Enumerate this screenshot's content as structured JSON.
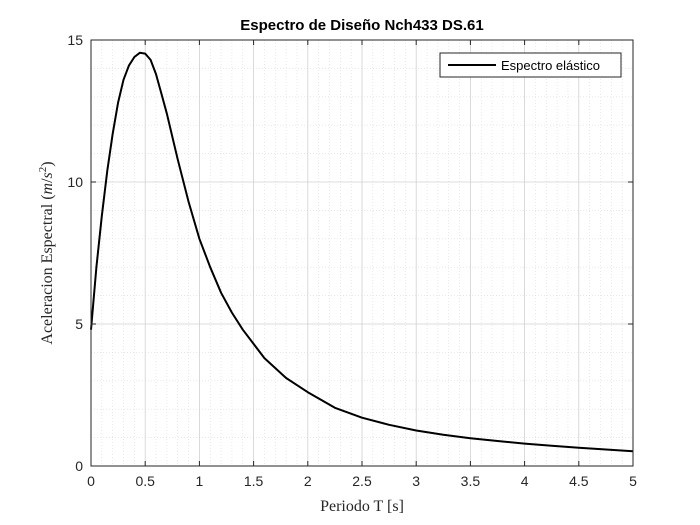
{
  "chart_data": {
    "type": "line",
    "title": "Espectro de Diseño Nch433 DS.61",
    "xlabel": "Periodo T [s]",
    "ylabel_main": "Aceleracion Espectral (",
    "ylabel_unit_m": "m",
    "ylabel_unit_slash": "/",
    "ylabel_unit_s": "s",
    "ylabel_unit_exp": "2",
    "ylabel_close": ")",
    "xlim": [
      0,
      5
    ],
    "ylim": [
      0,
      15
    ],
    "xticks": [
      0,
      0.5,
      1,
      1.5,
      2,
      2.5,
      3,
      3.5,
      4,
      4.5,
      5
    ],
    "xtick_labels": [
      "0",
      "0.5",
      "1",
      "1.5",
      "2",
      "2.5",
      "3",
      "3.5",
      "4",
      "4.5",
      "5"
    ],
    "yticks": [
      0,
      5,
      10,
      15
    ],
    "ytick_labels": [
      "0",
      "5",
      "10",
      "15"
    ],
    "grid": true,
    "minor_grid": true,
    "legend_position": "top-right",
    "series": [
      {
        "name": "Espectro elástico",
        "color": "#000000",
        "x": [
          0,
          0.05,
          0.1,
          0.15,
          0.2,
          0.25,
          0.3,
          0.35,
          0.4,
          0.45,
          0.5,
          0.55,
          0.6,
          0.65,
          0.7,
          0.75,
          0.8,
          0.9,
          1.0,
          1.1,
          1.2,
          1.3,
          1.4,
          1.5,
          1.6,
          1.8,
          2.0,
          2.25,
          2.5,
          2.75,
          3.0,
          3.25,
          3.5,
          3.75,
          4.0,
          4.25,
          4.5,
          4.75,
          5.0
        ],
        "y": [
          4.8,
          7.0,
          8.8,
          10.4,
          11.7,
          12.8,
          13.6,
          14.1,
          14.4,
          14.55,
          14.52,
          14.3,
          13.8,
          13.1,
          12.4,
          11.6,
          10.8,
          9.3,
          8.0,
          7.0,
          6.1,
          5.4,
          4.8,
          4.3,
          3.8,
          3.1,
          2.6,
          2.05,
          1.7,
          1.45,
          1.25,
          1.1,
          0.98,
          0.88,
          0.79,
          0.71,
          0.64,
          0.58,
          0.52
        ]
      }
    ]
  }
}
